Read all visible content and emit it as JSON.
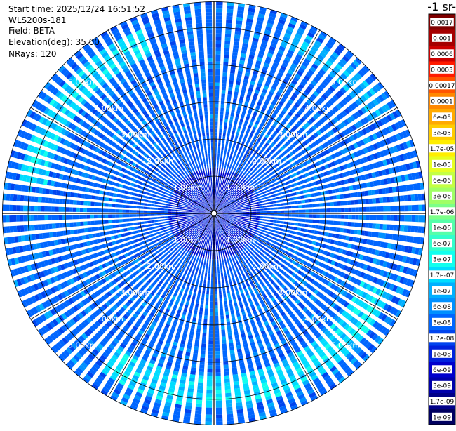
{
  "header": {
    "start_time": "Start time: 2025/12/24 16:51:52",
    "device": "WLS200s-181",
    "field": "Field: BETA",
    "elevation": "Elevation(deg): 35.00",
    "nrays": "NRays: 120"
  },
  "colorbar": {
    "unit_title": "-1 sr-",
    "labels": [
      "0.0017",
      "0.001",
      "0.0006",
      "0.0003",
      "0.00017",
      "0.0001",
      "6e-05",
      "3e-05",
      "1.7e-05",
      "1e-05",
      "6e-06",
      "3e-06",
      "1.7e-06",
      "1e-06",
      "6e-07",
      "3e-07",
      "1.7e-07",
      "1e-07",
      "6e-08",
      "3e-08",
      "1.7e-08",
      "1e-08",
      "6e-09",
      "3e-09",
      "1.7e-09",
      "1e-09"
    ],
    "colors": [
      "#7f0000",
      "#a50000",
      "#cc0000",
      "#ff1a00",
      "#ff5500",
      "#ff8800",
      "#ffaa00",
      "#ffcc00",
      "#ffee00",
      "#e6ff22",
      "#c4ff44",
      "#a0ff66",
      "#7cff88",
      "#55ffaa",
      "#33ffcc",
      "#11ffee",
      "#00ddff",
      "#00b0ff",
      "#0090ff",
      "#0066ff",
      "#0044ee",
      "#0022dd",
      "#0000cc",
      "#0000aa",
      "#000088",
      "#000060"
    ]
  },
  "chart_data": {
    "type": "heatmap",
    "projection": "polar-ppi",
    "field": "BETA",
    "elevation_deg": 35.0,
    "nrays": 120,
    "range_rings_km": [
      1.0,
      2.0,
      3.0,
      4.0,
      5.0
    ],
    "range_labels": [
      "1.00km",
      "2.00km",
      "3.00km",
      "4.00km",
      "5.00km"
    ],
    "max_range_km": 5.7,
    "grid": true,
    "colorbar_position": "right",
    "background_value": "3e-08",
    "features": [
      {
        "description": "enhanced band",
        "range_km": [
          4.6,
          5.3
        ],
        "azimuth_deg": [
          280,
          340
        ],
        "value": "1.7e-07"
      },
      {
        "description": "enhanced band",
        "range_km": [
          4.4,
          5.2
        ],
        "azimuth_deg": [
          115,
          215
        ],
        "value": "1.7e-07"
      },
      {
        "description": "enhanced band",
        "range_km": [
          4.8,
          5.4
        ],
        "azimuth_deg": [
          20,
          60
        ],
        "value": "1e-07"
      },
      {
        "description": "low values near center",
        "range_km": [
          0.0,
          1.2
        ],
        "azimuth_deg": [
          0,
          360
        ],
        "value": "1e-08"
      }
    ]
  }
}
